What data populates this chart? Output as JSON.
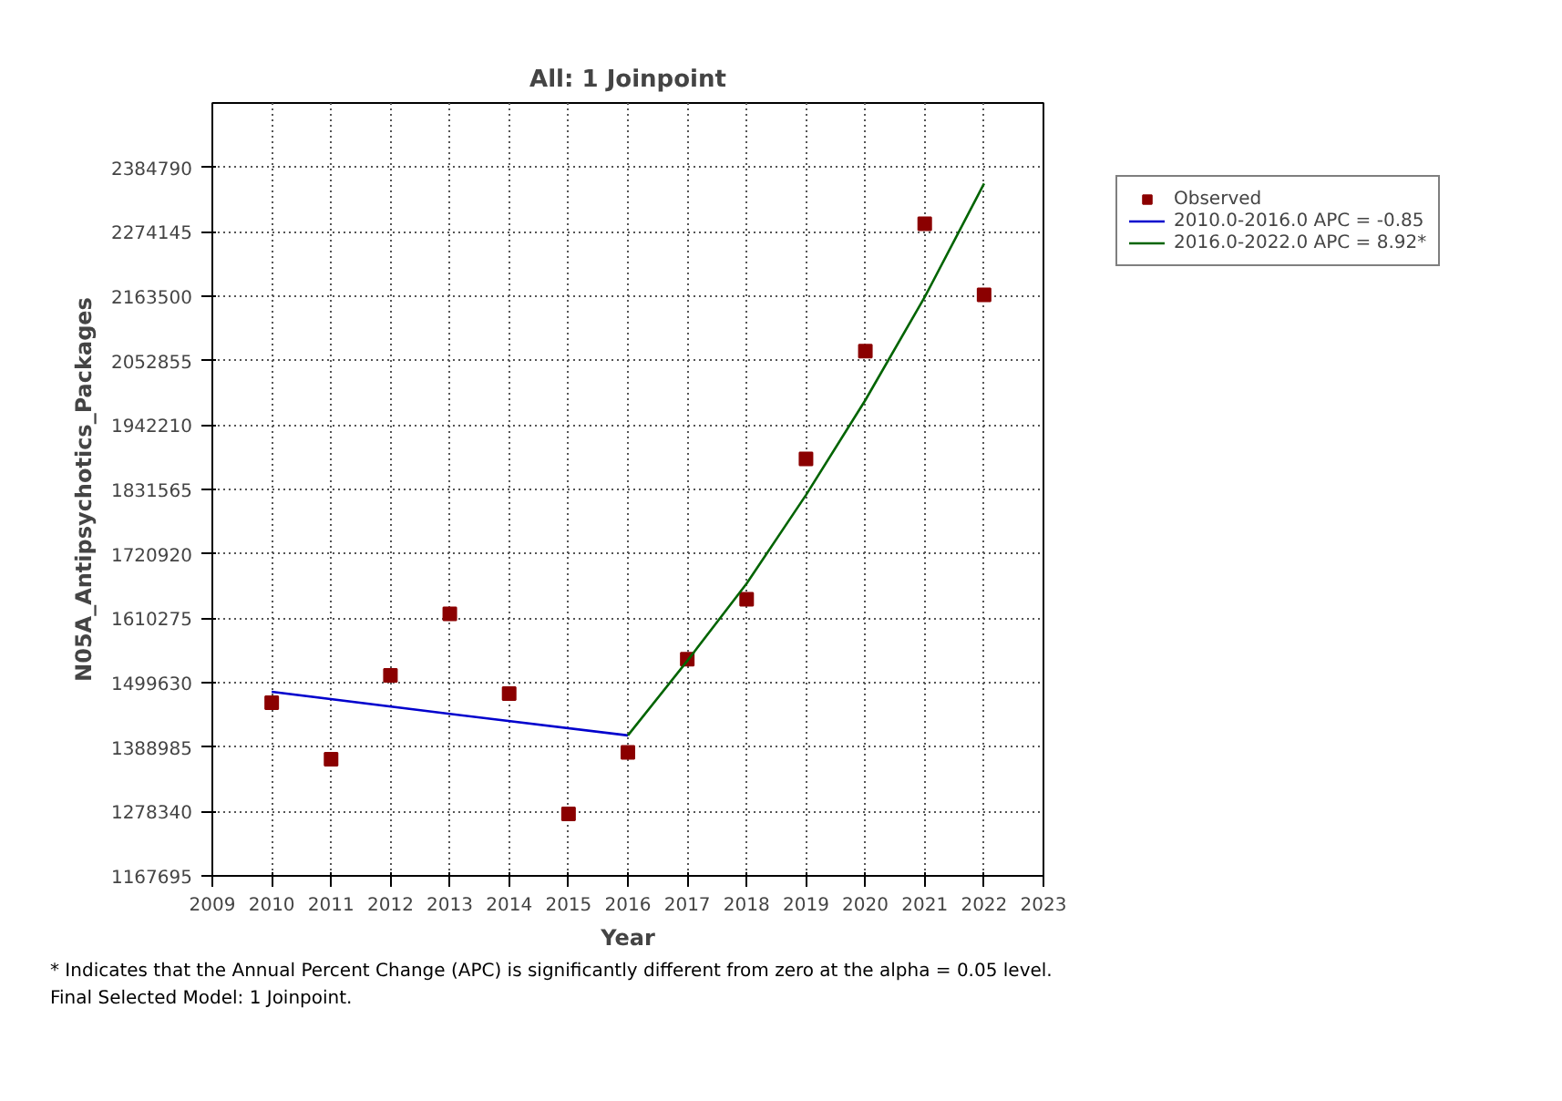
{
  "chart_data": {
    "type": "scatter",
    "title": "All: 1 Joinpoint",
    "xlabel": "Year",
    "ylabel": "N05A_Antipsychotics_Packages",
    "xlim": [
      2009,
      2023
    ],
    "xticks": [
      2009,
      2010,
      2011,
      2012,
      2013,
      2014,
      2015,
      2016,
      2017,
      2018,
      2019,
      2020,
      2021,
      2022,
      2023
    ],
    "ylim": [
      1167695,
      2495435
    ],
    "yticks": [
      1167695,
      1278340,
      1388985,
      1499630,
      1610275,
      1720920,
      1831565,
      1942210,
      2052855,
      2163500,
      2274145,
      2384790
    ],
    "grid": true,
    "legend": "top right",
    "series": [
      {
        "name": "Observed",
        "type": "scatter",
        "marker": "square",
        "color": "#8b0000",
        "x": [
          2010,
          2011,
          2012,
          2013,
          2014,
          2015,
          2016,
          2017,
          2018,
          2019,
          2020,
          2021,
          2022
        ],
        "values": [
          1465000,
          1368000,
          1512000,
          1618000,
          1481000,
          1274000,
          1380000,
          1540000,
          1643000,
          1884000,
          2069000,
          2288000,
          2166000
        ]
      },
      {
        "name": "2010.0-2016.0 APC = -0.85",
        "type": "line",
        "marker": "none",
        "color": "#0000cd",
        "x": [
          2010,
          2013,
          2016
        ],
        "values": [
          1484000,
          1446000,
          1409000
        ]
      },
      {
        "name": "2016.0-2022.0 APC = 8.92*",
        "type": "line",
        "marker": "none",
        "color": "#006400",
        "x": [
          2016,
          2017,
          2018,
          2019,
          2020,
          2021,
          2022
        ],
        "values": [
          1409000,
          1537000,
          1670000,
          1822000,
          1985000,
          2162000,
          2357000
        ]
      }
    ],
    "annotations": [
      "* Indicates that the Annual Percent Change (APC) is significantly different from zero at the alpha = 0.05 level.",
      "Final Selected Model: 1 Joinpoint."
    ]
  }
}
